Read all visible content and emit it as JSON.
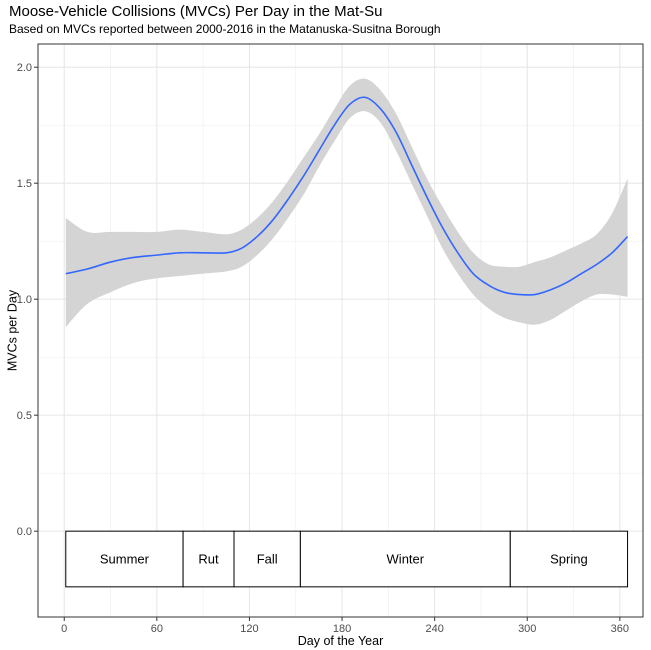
{
  "chart_data": {
    "type": "line",
    "title": "Moose-Vehicle Collisions (MVCs) Per Day in the Mat-Su",
    "subtitle": "Based on MVCs reported between 2000-2016 in the Matanuska-Susitna Borough",
    "xlabel": "Day of the Year",
    "ylabel": "MVCs per Day",
    "xlim": [
      -17,
      375
    ],
    "ylim": [
      -0.37,
      2.1
    ],
    "x_ticks": [
      0,
      60,
      120,
      180,
      240,
      300,
      360
    ],
    "y_ticks": [
      0.0,
      0.5,
      1.0,
      1.5,
      2.0
    ],
    "x_tick_labels": [
      "0",
      "60",
      "120",
      "180",
      "240",
      "300",
      "360"
    ],
    "y_tick_labels": [
      "0.0",
      "0.5",
      "1.0",
      "1.5",
      "2.0"
    ],
    "grid": true,
    "line_color": "#3366ff",
    "band_color": "#d4d4d4",
    "series": [
      {
        "x": [
          1,
          15,
          30,
          45,
          60,
          75,
          90,
          105,
          115,
          125,
          135,
          145,
          155,
          165,
          175,
          185,
          195,
          205,
          215,
          225,
          235,
          245,
          255,
          265,
          275,
          285,
          295,
          305,
          315,
          325,
          335,
          345,
          355,
          365
        ],
        "y": [
          1.11,
          1.13,
          1.16,
          1.18,
          1.19,
          1.2,
          1.2,
          1.2,
          1.22,
          1.27,
          1.34,
          1.43,
          1.53,
          1.64,
          1.75,
          1.84,
          1.87,
          1.82,
          1.72,
          1.58,
          1.44,
          1.31,
          1.2,
          1.11,
          1.06,
          1.03,
          1.02,
          1.02,
          1.04,
          1.07,
          1.11,
          1.15,
          1.2,
          1.27
        ],
        "lower": [
          0.88,
          0.98,
          1.03,
          1.07,
          1.09,
          1.1,
          1.11,
          1.12,
          1.14,
          1.19,
          1.26,
          1.35,
          1.45,
          1.57,
          1.68,
          1.78,
          1.81,
          1.76,
          1.64,
          1.5,
          1.36,
          1.22,
          1.11,
          1.02,
          0.96,
          0.92,
          0.9,
          0.89,
          0.91,
          0.95,
          0.99,
          1.02,
          1.02,
          1.01
        ],
        "upper": [
          1.35,
          1.29,
          1.29,
          1.29,
          1.29,
          1.3,
          1.29,
          1.28,
          1.3,
          1.35,
          1.42,
          1.51,
          1.61,
          1.71,
          1.82,
          1.92,
          1.95,
          1.9,
          1.8,
          1.66,
          1.52,
          1.4,
          1.29,
          1.2,
          1.15,
          1.14,
          1.14,
          1.16,
          1.18,
          1.21,
          1.24,
          1.28,
          1.37,
          1.52
        ]
      }
    ],
    "season_boxes": {
      "y_range": [
        -0.24,
        0.0
      ],
      "segments": [
        {
          "label": "Summer",
          "start": 1,
          "end": 77
        },
        {
          "label": "Rut",
          "start": 77,
          "end": 110
        },
        {
          "label": "Fall",
          "start": 110,
          "end": 153
        },
        {
          "label": "Winter",
          "start": 153,
          "end": 289
        },
        {
          "label": "Spring",
          "start": 289,
          "end": 365
        }
      ]
    }
  }
}
